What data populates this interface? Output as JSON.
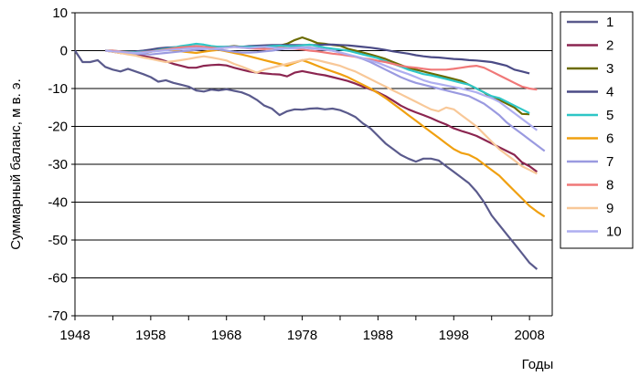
{
  "chart_data": {
    "type": "line",
    "title": "",
    "xlabel": "Годы",
    "ylabel": "Суммарный баланс,  м в. э.",
    "xlim": [
      1948,
      2011
    ],
    "ylim": [
      -70,
      10
    ],
    "x_ticks": [
      1948,
      1958,
      1968,
      1978,
      1988,
      1998,
      2008
    ],
    "y_ticks": [
      10,
      0,
      -10,
      -20,
      -30,
      -40,
      -50,
      -60,
      -70
    ],
    "grid": "horizontal",
    "legend": "right",
    "series": [
      {
        "name": "1",
        "color": "#5a5a8c",
        "start": 1948,
        "values": [
          0,
          -3,
          -3,
          -2.5,
          -4.3,
          -5,
          -5.5,
          -4.8,
          -5.5,
          -6.2,
          -7,
          -8.2,
          -7.8,
          -8.5,
          -9,
          -9.5,
          -10.5,
          -10.8,
          -10.3,
          -10.5,
          -10.2,
          -10.6,
          -11,
          -11.8,
          -13,
          -14.5,
          -15.3,
          -17,
          -16,
          -15.5,
          -15.6,
          -15.3,
          -15.2,
          -15.5,
          -15.3,
          -15.7,
          -16.5,
          -17.5,
          -19.2,
          -20.5,
          -22.5,
          -24.5,
          -26,
          -27.5,
          -28.5,
          -29.3,
          -28.5,
          -28.5,
          -29,
          -30.5,
          -32,
          -33.5,
          -35,
          -37.2,
          -40,
          -43.5,
          -46,
          -48.5,
          -51,
          -53.5,
          -56,
          -57.7
        ]
      },
      {
        "name": "2",
        "color": "#8b2550",
        "start": 1952,
        "values": [
          0,
          -0.3,
          -0.6,
          -0.8,
          -1,
          -1.4,
          -1.8,
          -2.2,
          -2.8,
          -3.5,
          -4,
          -4.5,
          -4.5,
          -4,
          -3.8,
          -3.7,
          -3.9,
          -4.5,
          -5,
          -5.5,
          -5.8,
          -6,
          -6.2,
          -6.3,
          -6.8,
          -5.8,
          -5.4,
          -5.8,
          -6.2,
          -6.5,
          -7,
          -7.5,
          -8,
          -8.7,
          -9.5,
          -10.2,
          -11,
          -12,
          -13.2,
          -14.5,
          -15.5,
          -16.3,
          -17,
          -17.8,
          -18.7,
          -19.5,
          -20.5,
          -21.2,
          -21.8,
          -22.5,
          -23.5,
          -24.5,
          -25.5,
          -26.5,
          -27.5,
          -29.5,
          -30.5,
          -32
        ]
      },
      {
        "name": "3",
        "color": "#6b6b00",
        "start": 1952,
        "values": [
          0,
          -0.2,
          -0.4,
          -0.5,
          -0.6,
          -0.5,
          -0.3,
          0,
          0.3,
          0.5,
          0.8,
          1.1,
          1,
          0.8,
          0.6,
          0.8,
          1,
          1.2,
          1,
          0.8,
          0.5,
          0.8,
          1,
          1.3,
          1.8,
          2.8,
          3.5,
          2.8,
          2,
          1.8,
          1.5,
          1.3,
          0.5,
          0,
          -0.5,
          -1,
          -1.6,
          -2.2,
          -3,
          -3.8,
          -4.5,
          -5,
          -5.5,
          -6,
          -6.5,
          -7,
          -7.5,
          -8,
          -9,
          -10,
          -11,
          -12.5,
          -13,
          -14,
          -15,
          -16.7,
          -16.8
        ]
      },
      {
        "name": "4",
        "color": "#4b4b86",
        "start": 1952,
        "values": [
          0,
          -0.2,
          -0.4,
          -0.3,
          -0.2,
          0,
          0.3,
          0.6,
          0.8,
          0.9,
          1,
          1.1,
          1,
          0.9,
          0.9,
          1,
          1,
          1.1,
          1,
          1.2,
          1.3,
          1.4,
          1.5,
          1.5,
          1.5,
          1.5,
          1.5,
          1.5,
          1.5,
          1.6,
          1.6,
          1.5,
          1.4,
          1.2,
          1,
          0.8,
          0.5,
          0.2,
          -0.2,
          -0.5,
          -0.8,
          -1.2,
          -1.5,
          -1.7,
          -1.8,
          -2,
          -2.2,
          -2.3,
          -2.5,
          -2.6,
          -2.8,
          -3,
          -3.5,
          -4,
          -5,
          -5.5,
          -6
        ]
      },
      {
        "name": "5",
        "color": "#2ec6c6",
        "start": 1952,
        "values": [
          0,
          0,
          -0.2,
          -0.3,
          -0.4,
          -0.3,
          -0.2,
          0.2,
          0.5,
          0.8,
          1.2,
          1.5,
          1.8,
          1.6,
          1.2,
          1,
          1,
          1,
          1,
          1,
          1,
          1,
          1.2,
          1.3,
          1.2,
          1.2,
          1.4,
          1.6,
          1.2,
          0.8,
          0.5,
          0.3,
          0,
          -0.5,
          -1,
          -1.5,
          -2,
          -2.8,
          -3.5,
          -4.2,
          -5,
          -5.6,
          -6.2,
          -6.5,
          -7,
          -7.5,
          -8,
          -8.5,
          -9,
          -10,
          -11,
          -12,
          -12.5,
          -13.5,
          -14.5,
          -15.5,
          -16.5
        ]
      },
      {
        "name": "6",
        "color": "#f0a010",
        "start": 1952,
        "values": [
          0,
          -0.3,
          -0.6,
          -0.8,
          -0.8,
          -0.6,
          -0.3,
          0,
          0.3,
          0.1,
          -0.2,
          -0.4,
          -0.6,
          -0.3,
          0,
          0.2,
          -0.2,
          -0.6,
          -1,
          -1.5,
          -2,
          -2.5,
          -3,
          -3.5,
          -4,
          -3.2,
          -2.5,
          -3.2,
          -4,
          -4.8,
          -5.5,
          -6.2,
          -7,
          -8,
          -9,
          -10,
          -11.2,
          -12.5,
          -14,
          -15.5,
          -17,
          -18.5,
          -20,
          -21.5,
          -23,
          -24.5,
          -26,
          -27,
          -27.5,
          -28.5,
          -30,
          -31.5,
          -33,
          -35,
          -37,
          -39,
          -41,
          -42.5,
          -43.8
        ]
      },
      {
        "name": "7",
        "color": "#9a9ae0",
        "start": 1952,
        "values": [
          0,
          -0.2,
          -0.4,
          -0.6,
          -0.8,
          -0.9,
          -1,
          -0.8,
          -0.6,
          -0.4,
          -0.2,
          0,
          0.2,
          0.4,
          0.5,
          0.3,
          0,
          -0.3,
          -0.5,
          -0.5,
          -0.4,
          -0.2,
          0,
          0.3,
          0.6,
          0.8,
          0.9,
          0.8,
          0.6,
          0.3,
          0,
          -0.5,
          -1,
          -1.6,
          -2.2,
          -3,
          -4,
          -5,
          -6,
          -7,
          -7.8,
          -8.5,
          -9,
          -9.5,
          -10,
          -10.5,
          -11,
          -11.5,
          -12,
          -13,
          -14,
          -15.5,
          -17,
          -19,
          -20.5,
          -22,
          -23.5,
          -25,
          -26.5
        ]
      },
      {
        "name": "8",
        "color": "#f07878",
        "start": 1952,
        "values": [
          0,
          0,
          -0.2,
          -0.4,
          -0.6,
          -0.4,
          -0.2,
          0,
          0.3,
          0.6,
          0.9,
          1,
          1.2,
          1,
          0.8,
          0.6,
          0.8,
          1,
          0.8,
          0.6,
          0.5,
          0.4,
          0.6,
          0.8,
          0.6,
          0.5,
          0.3,
          0,
          -0.2,
          -0.5,
          -0.8,
          -1,
          -1.3,
          -1.6,
          -2,
          -2.3,
          -2.7,
          -3,
          -3.5,
          -4,
          -4.3,
          -4.5,
          -4.8,
          -5,
          -5,
          -5,
          -4.8,
          -4.5,
          -4.2,
          -4,
          -4.5,
          -5.5,
          -6.5,
          -7.5,
          -8.5,
          -9.5,
          -10,
          -10.3
        ]
      },
      {
        "name": "9",
        "color": "#f8c898",
        "start": 1952,
        "values": [
          0,
          -0.3,
          -0.6,
          -1,
          -1.3,
          -1.8,
          -2.2,
          -2.6,
          -3,
          -2.8,
          -2.5,
          -2.2,
          -1.8,
          -1.5,
          -1.8,
          -2.2,
          -2.6,
          -3.5,
          -4.2,
          -5,
          -5.8,
          -5,
          -4.5,
          -4,
          -3.5,
          -3,
          -2.5,
          -2.2,
          -2.5,
          -3,
          -3.5,
          -4,
          -4.8,
          -5.5,
          -6.5,
          -7.5,
          -8.5,
          -9.5,
          -10.5,
          -11.5,
          -12.5,
          -13.5,
          -14.5,
          -15.5,
          -16,
          -15,
          -15.5,
          -17,
          -18.5,
          -20,
          -22,
          -24,
          -26,
          -27.5,
          -29,
          -30.5,
          -31.5,
          -32.5
        ]
      },
      {
        "name": "10",
        "color": "#aeaef0",
        "start": 1952,
        "values": [
          0,
          -0.2,
          -0.3,
          -0.5,
          -0.6,
          -0.5,
          -0.3,
          -0.1,
          0.1,
          0.3,
          0.4,
          0.6,
          0.7,
          0.6,
          0.4,
          0.6,
          0.8,
          1,
          0.8,
          0.7,
          0.9,
          1,
          0.8,
          0.6,
          0.5,
          0.6,
          0.8,
          0.6,
          0.4,
          0.2,
          0,
          -0.5,
          -1,
          -1.5,
          -2,
          -2.6,
          -3.2,
          -4,
          -4.8,
          -5.5,
          -6.2,
          -7,
          -7.8,
          -8.4,
          -8.8,
          -9.2,
          -9.6,
          -10,
          -10.5,
          -11,
          -11.8,
          -12.5,
          -13.5,
          -15,
          -16.5,
          -18,
          -19.5,
          -21
        ]
      }
    ]
  }
}
